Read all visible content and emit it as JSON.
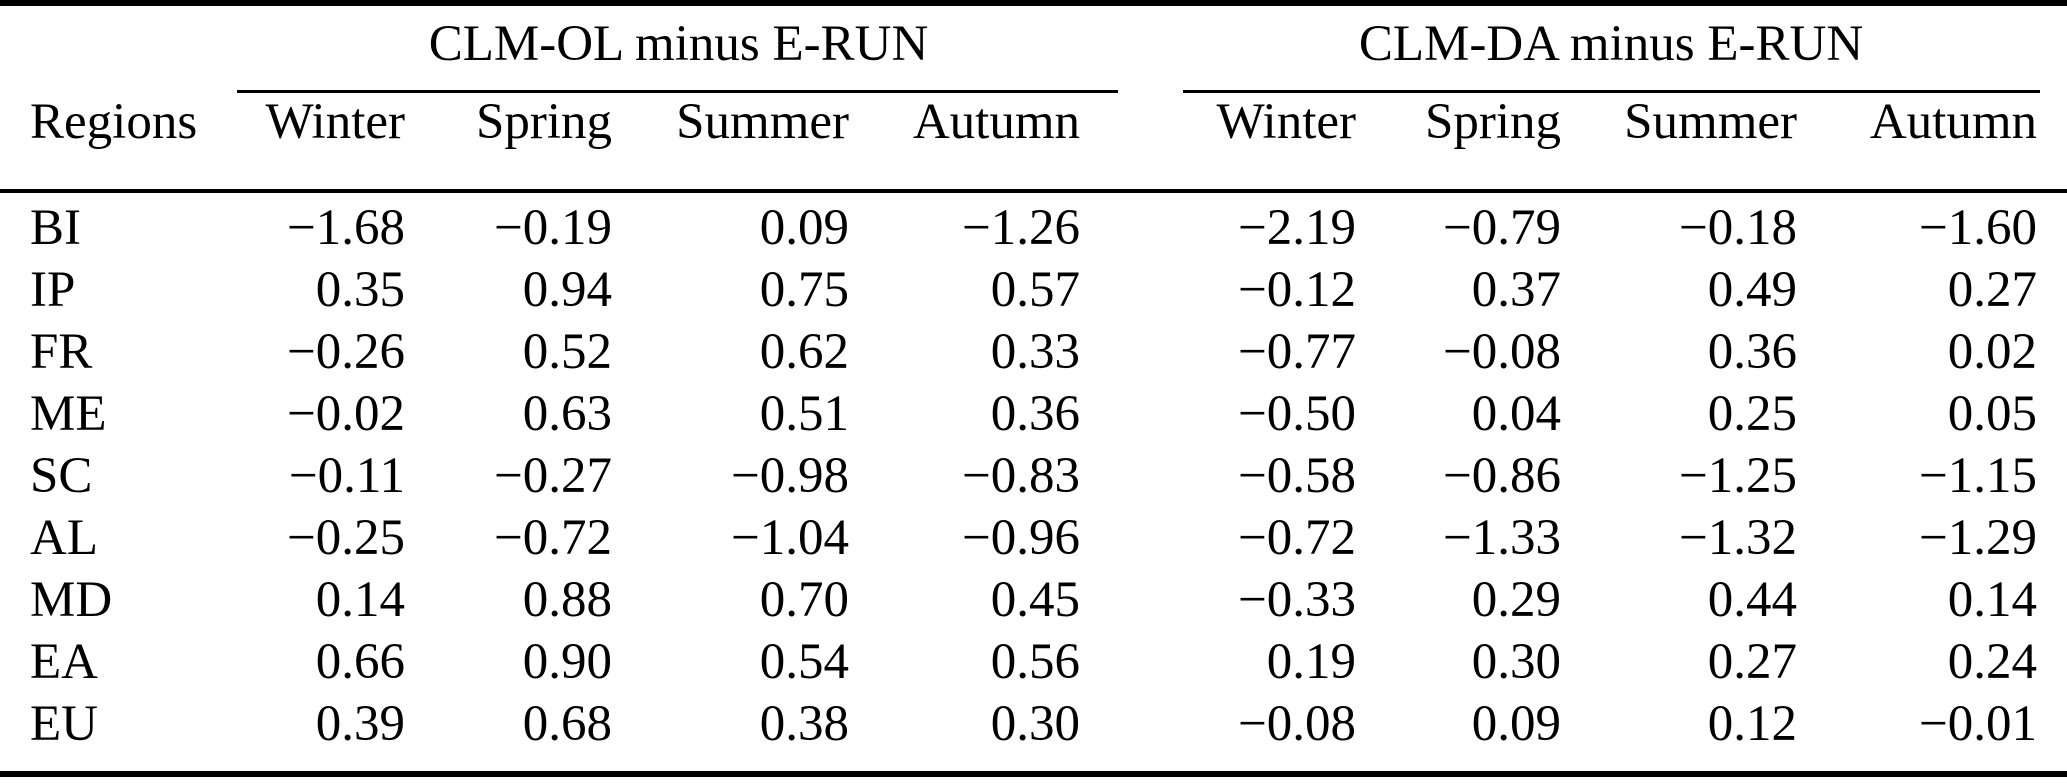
{
  "table": {
    "column_groups": [
      {
        "label": "CLM-OL minus E-RUN"
      },
      {
        "label": "CLM-DA minus E-RUN"
      }
    ],
    "regions_header": "Regions",
    "season_headers_ol": [
      "Winter",
      "Spring",
      "Summer",
      "Autumn"
    ],
    "season_headers_da": [
      "Winter",
      "Spring",
      "Summer",
      "Autumn"
    ],
    "rows": [
      {
        "region": "BI",
        "values": [
          "−1.68",
          "−0.19",
          "0.09",
          "−1.26",
          "−2.19",
          "−0.79",
          "−0.18",
          "−1.60"
        ]
      },
      {
        "region": "IP",
        "values": [
          "0.35",
          "0.94",
          "0.75",
          "0.57",
          "−0.12",
          "0.37",
          "0.49",
          "0.27"
        ]
      },
      {
        "region": "FR",
        "values": [
          "−0.26",
          "0.52",
          "0.62",
          "0.33",
          "−0.77",
          "−0.08",
          "0.36",
          "0.02"
        ]
      },
      {
        "region": "ME",
        "values": [
          "−0.02",
          "0.63",
          "0.51",
          "0.36",
          "−0.50",
          "0.04",
          "0.25",
          "0.05"
        ]
      },
      {
        "region": "SC",
        "values": [
          "−0.11",
          "−0.27",
          "−0.98",
          "−0.83",
          "−0.58",
          "−0.86",
          "−1.25",
          "−1.15"
        ]
      },
      {
        "region": "AL",
        "values": [
          "−0.25",
          "−0.72",
          "−1.04",
          "−0.96",
          "−0.72",
          "−1.33",
          "−1.32",
          "−1.29"
        ]
      },
      {
        "region": "MD",
        "values": [
          "0.14",
          "0.88",
          "0.70",
          "0.45",
          "−0.33",
          "0.29",
          "0.44",
          "0.14"
        ]
      },
      {
        "region": "EA",
        "values": [
          "0.66",
          "0.90",
          "0.54",
          "0.56",
          "0.19",
          "0.30",
          "0.27",
          "0.24"
        ]
      },
      {
        "region": "EU",
        "values": [
          "0.39",
          "0.68",
          "0.38",
          "0.30",
          "−0.08",
          "0.09",
          "0.12",
          "−0.01"
        ]
      }
    ]
  },
  "colors": {
    "background": "#ffffff",
    "text": "#000000",
    "rule": "#000000"
  }
}
